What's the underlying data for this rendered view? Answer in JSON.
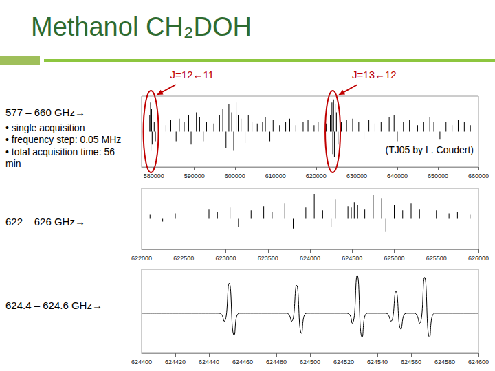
{
  "slide": {
    "title": "Methanol CH₂DOH"
  },
  "chart_data": [
    {
      "type": "bar",
      "title": "577 – 660 GHz→",
      "notes": [
        "• single acquisition",
        "• frequency step: 0.05 MHz",
        "• total acquisition time: 56 min"
      ],
      "annotations": [
        {
          "text": "J=12←11",
          "x": 579300
        },
        {
          "text": "J=13←12",
          "x": 624100
        }
      ],
      "credit": "(TJ05 by L. Coudert)",
      "x": [
        579000,
        579200,
        579300,
        579450,
        579600,
        579800,
        580100,
        580400,
        583000,
        584200,
        585500,
        586300,
        587500,
        588600,
        589200,
        590500,
        591300,
        592200,
        593000,
        594800,
        596200,
        597000,
        597800,
        598500,
        599200,
        599700,
        600300,
        600800,
        601500,
        602500,
        603300,
        604200,
        605500,
        606800,
        607500,
        608600,
        609400,
        611000,
        612500,
        613500,
        615000,
        616800,
        618000,
        619500,
        620500,
        622500,
        623500,
        623900,
        624100,
        624300,
        624500,
        624700,
        625000,
        625400,
        626200,
        627500,
        629000,
        630500,
        631800,
        633000,
        634500,
        636000,
        638000,
        639200,
        640000,
        641500,
        643000,
        645000,
        646500,
        648000,
        649000,
        650500,
        652000,
        653500,
        655000,
        656500,
        658000
      ],
      "values": [
        0.5,
        0.9,
        -0.6,
        0.7,
        -0.4,
        0.5,
        0.3,
        -0.3,
        0.2,
        0.35,
        -0.3,
        0.4,
        0.3,
        0.5,
        -0.4,
        0.6,
        0.45,
        -0.3,
        0.3,
        0.25,
        0.5,
        0.7,
        -0.5,
        0.85,
        0.6,
        -0.6,
        0.9,
        0.5,
        0.4,
        -0.35,
        0.5,
        0.3,
        0.25,
        0.3,
        0.45,
        -0.3,
        0.35,
        0.2,
        0.3,
        0.4,
        0.2,
        0.3,
        0.35,
        0.2,
        0.3,
        0.25,
        0.5,
        0.9,
        -0.7,
        1.0,
        -0.8,
        0.85,
        0.6,
        -0.4,
        0.3,
        0.35,
        0.4,
        0.3,
        -0.25,
        0.35,
        0.25,
        0.3,
        0.45,
        0.5,
        -0.3,
        0.3,
        0.35,
        0.2,
        0.3,
        0.45,
        0.3,
        -0.25,
        0.3,
        0.2,
        0.35,
        0.3,
        0.2
      ],
      "color": "#000000",
      "xlim": [
        577000,
        660000
      ],
      "xticks": [
        580000,
        590000,
        600000,
        610000,
        620000,
        630000,
        640000,
        650000,
        660000
      ],
      "ylim": [
        -1.1,
        1.1
      ],
      "tick_labels": "x",
      "grid": false
    },
    {
      "type": "bar",
      "title": "622 – 626 GHz→",
      "x": [
        622100,
        622250,
        622400,
        622600,
        622800,
        622900,
        623050,
        623150,
        623300,
        623450,
        623550,
        623700,
        623800,
        623950,
        624050,
        624150,
        624250,
        624300,
        624450,
        624490,
        624525,
        624565,
        624650,
        624750,
        624850,
        624900,
        625000,
        625100,
        625200,
        625300,
        625400,
        625500,
        625650,
        625750,
        625900
      ],
      "values": [
        0.15,
        -0.1,
        0.2,
        0.15,
        0.35,
        0.25,
        0.4,
        -0.3,
        0.3,
        0.45,
        0.25,
        0.55,
        -0.35,
        0.4,
        0.9,
        0.3,
        -0.3,
        0.7,
        0.45,
        0.4,
        0.6,
        0.5,
        0.35,
        0.85,
        0.75,
        -0.45,
        0.5,
        0.3,
        0.55,
        0.35,
        -0.25,
        0.3,
        0.2,
        0.25,
        0.15
      ],
      "color": "#000000",
      "xlim": [
        622000,
        626000
      ],
      "xticks": [
        622000,
        622500,
        623000,
        623500,
        624000,
        624500,
        625000,
        625500,
        626000
      ],
      "ylim": [
        -1.1,
        1.1
      ],
      "tick_labels": "x",
      "grid": false
    },
    {
      "type": "line",
      "title": "624.4 – 624.6 GHz→",
      "x": [
        624400,
        624446,
        624449,
        624452,
        624455,
        624458,
        624486,
        624489,
        624492,
        624495,
        624498,
        624522,
        624525,
        624528,
        624531,
        624534,
        624545,
        624548,
        624551,
        624554,
        624557,
        624562,
        624565,
        624568,
        624571,
        624574,
        624600
      ],
      "values": [
        0,
        0,
        -0.2,
        0.75,
        -0.55,
        0,
        0,
        -0.2,
        0.7,
        -0.5,
        0,
        0,
        -0.25,
        0.95,
        -0.6,
        0,
        0,
        -0.2,
        0.55,
        -0.4,
        0,
        0,
        -0.25,
        0.9,
        -0.6,
        0,
        0
      ],
      "color": "#000000",
      "xlim": [
        624400,
        624600
      ],
      "xticks": [
        624400,
        624420,
        624440,
        624460,
        624480,
        624500,
        624520,
        624540,
        624560,
        624580,
        624600
      ],
      "ylim": [
        -1,
        1.1
      ],
      "tick_labels": "x",
      "grid": false
    }
  ]
}
